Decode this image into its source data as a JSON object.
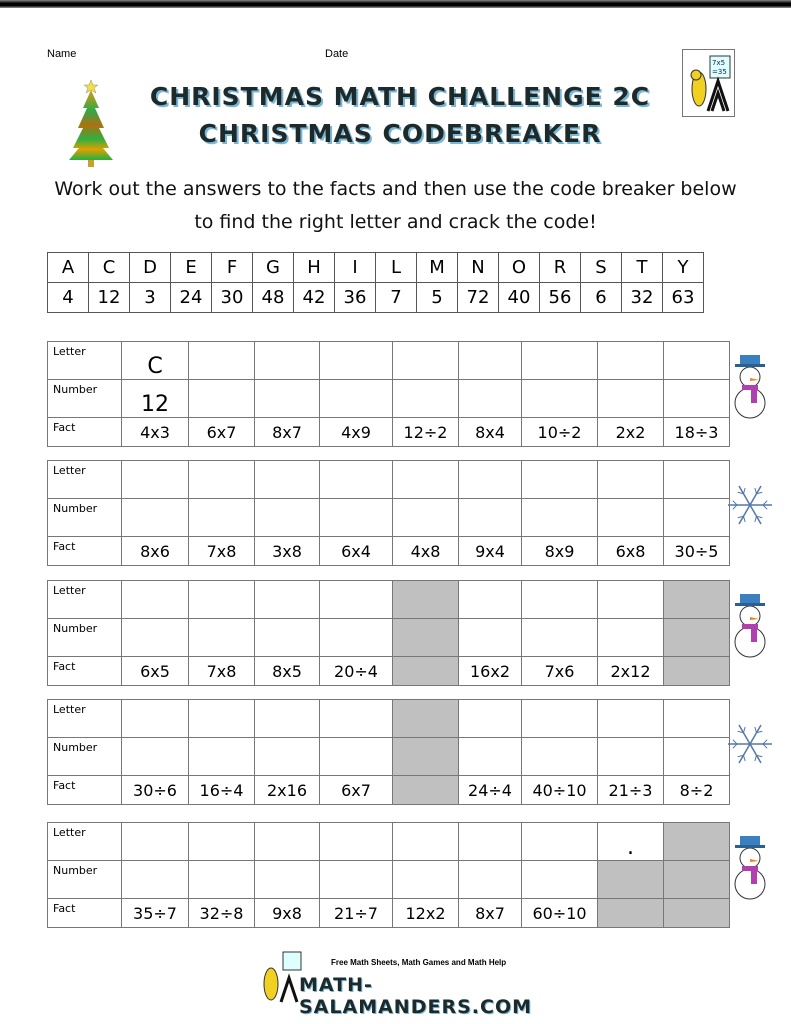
{
  "header": {
    "name_label": "Name",
    "date_label": "Date",
    "title_line1": "CHRISTMAS MATH CHALLENGE 2C",
    "title_line2": "CHRISTMAS CODEBREAKER",
    "logo_board_text": "7x5 =35"
  },
  "instructions": [
    "Work out the answers to the facts and then use the code breaker below",
    "to find the right letter and crack the code!"
  ],
  "code_breaker": {
    "letters": [
      "A",
      "C",
      "D",
      "E",
      "F",
      "G",
      "H",
      "I",
      "L",
      "M",
      "N",
      "O",
      "R",
      "S",
      "T",
      "Y"
    ],
    "numbers": [
      "4",
      "12",
      "3",
      "24",
      "30",
      "48",
      "42",
      "36",
      "7",
      "5",
      "72",
      "40",
      "56",
      "6",
      "32",
      "63"
    ]
  },
  "row_labels": {
    "letter": "Letter",
    "number": "Number",
    "fact": "Fact"
  },
  "worksheets": [
    {
      "side_icon": "snowman",
      "cells": [
        {
          "letter": "C",
          "number": "12",
          "fact": "4x3"
        },
        {
          "fact": "6x7"
        },
        {
          "fact": "8x7"
        },
        {
          "fact": "4x9"
        },
        {
          "fact": "12÷2"
        },
        {
          "fact": "8x4"
        },
        {
          "fact": "10÷2"
        },
        {
          "fact": "2x2"
        },
        {
          "fact": "18÷3"
        }
      ]
    },
    {
      "side_icon": "snowflake",
      "cells": [
        {
          "fact": "8x6"
        },
        {
          "fact": "7x8"
        },
        {
          "fact": "3x8"
        },
        {
          "fact": "6x4"
        },
        {
          "fact": "4x8"
        },
        {
          "fact": "9x4"
        },
        {
          "fact": "8x9"
        },
        {
          "fact": "6x8"
        },
        {
          "fact": "30÷5"
        }
      ]
    },
    {
      "side_icon": "snowman",
      "cells": [
        {
          "fact": "6x5"
        },
        {
          "fact": "7x8"
        },
        {
          "fact": "8x5"
        },
        {
          "fact": "20÷4"
        },
        {
          "shaded": [
            "letter",
            "number",
            "fact"
          ]
        },
        {
          "fact": "16x2"
        },
        {
          "fact": "7x6"
        },
        {
          "fact": "2x12"
        },
        {
          "shaded": [
            "letter",
            "number",
            "fact"
          ]
        }
      ]
    },
    {
      "side_icon": "snowflake",
      "cells": [
        {
          "fact": "30÷6"
        },
        {
          "fact": "16÷4"
        },
        {
          "fact": "2x16"
        },
        {
          "fact": "6x7"
        },
        {
          "shaded": [
            "letter",
            "number",
            "fact"
          ]
        },
        {
          "fact": "24÷4"
        },
        {
          "fact": "40÷10"
        },
        {
          "fact": "21÷3"
        },
        {
          "fact": "8÷2"
        }
      ]
    },
    {
      "side_icon": "snowman",
      "cells": [
        {
          "fact": "35÷7"
        },
        {
          "fact": "32÷8"
        },
        {
          "fact": "9x8"
        },
        {
          "fact": "21÷7"
        },
        {
          "fact": "12x2"
        },
        {
          "fact": "8x7"
        },
        {
          "fact": "60÷10"
        },
        {
          "letter": ".",
          "shaded": [
            "number",
            "fact"
          ]
        },
        {
          "shaded": [
            "letter",
            "number",
            "fact"
          ]
        }
      ]
    }
  ],
  "footer": {
    "tagline": "Free Math Sheets, Math Games and Math Help",
    "site": "MATH-SALAMANDERS.COM"
  }
}
